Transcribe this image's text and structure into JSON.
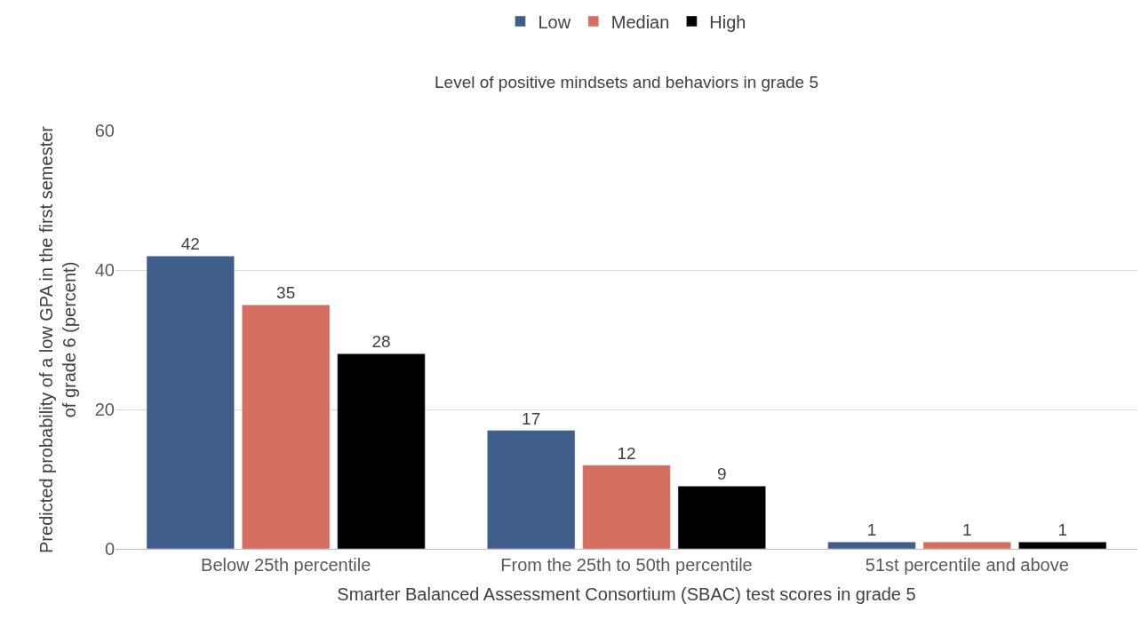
{
  "chart_data": {
    "type": "bar",
    "legend_title": "Level of positive mindsets and behaviors in grade 5",
    "xlabel": "Smarter Balanced Assessment Consortium (SBAC) test scores in grade 5",
    "ylabel": "Predicted probability of a low GPA in the first semester\nof grade 6 (percent)",
    "categories": [
      "Below 25th percentile",
      "From the 25th to 50th percentile",
      "51st percentile and above"
    ],
    "series": [
      {
        "name": "Low",
        "color": "#3f5e8a",
        "values": [
          42,
          17,
          1
        ]
      },
      {
        "name": "Median",
        "color": "#d46e5e",
        "values": [
          35,
          12,
          1
        ]
      },
      {
        "name": "High",
        "color": "#000000",
        "values": [
          28,
          9,
          1
        ]
      }
    ],
    "ylim": [
      0,
      60
    ],
    "yticks": [
      0,
      20,
      40,
      60
    ],
    "grid": "y",
    "legend": "top",
    "data_labels": true
  }
}
